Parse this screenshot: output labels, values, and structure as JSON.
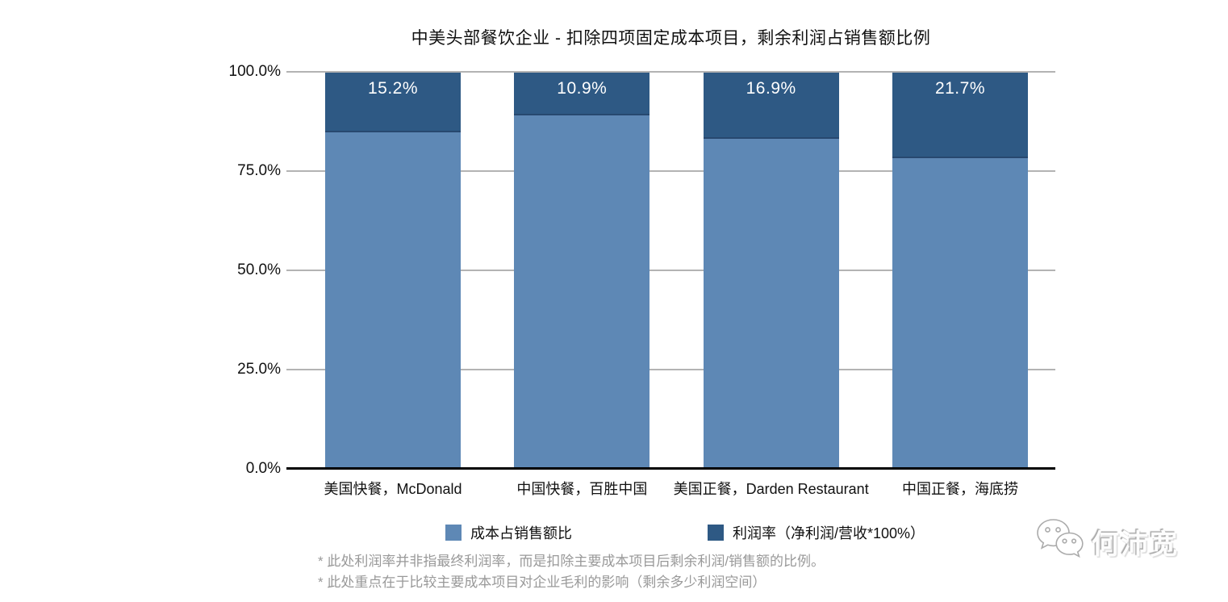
{
  "chart_data": {
    "type": "bar",
    "stacked": true,
    "title": "中美头部餐饮企业 - 扣除四项固定成本项目，剩余利润占销售额比例",
    "categories": [
      "美国快餐，McDonald",
      "中国快餐，百胜中国",
      "美国正餐，Darden Restaurant",
      "中国正餐，海底捞"
    ],
    "series": [
      {
        "name": "成本占销售额比",
        "color": "#5e88b5",
        "values": [
          84.8,
          89.1,
          83.1,
          78.3
        ]
      },
      {
        "name": "利润率（净利润/营收*100%）",
        "color": "#2e5984",
        "values": [
          15.2,
          10.9,
          16.9,
          21.7
        ]
      }
    ],
    "bar_labels": [
      "15.2%",
      "10.9%",
      "16.9%",
      "21.7%"
    ],
    "yticks": [
      {
        "label": "0.0%",
        "value": 0
      },
      {
        "label": "25.0%",
        "value": 25
      },
      {
        "label": "50.0%",
        "value": 50
      },
      {
        "label": "75.0%",
        "value": 75
      },
      {
        "label": "100.0%",
        "value": 100
      }
    ],
    "ylim": [
      0,
      100
    ],
    "grid": "horizontal",
    "legend_position": "bottom"
  },
  "footnotes": [
    "* 此处利润率并非指最终利润率，而是扣除主要成本项目后剩余利润/销售额的比例。",
    "* 此处重点在于比较主要成本项目对企业毛利的影响（剩余多少利润空间）"
  ],
  "watermark": {
    "icon": "wechat-icon",
    "text": "何沛宽"
  }
}
